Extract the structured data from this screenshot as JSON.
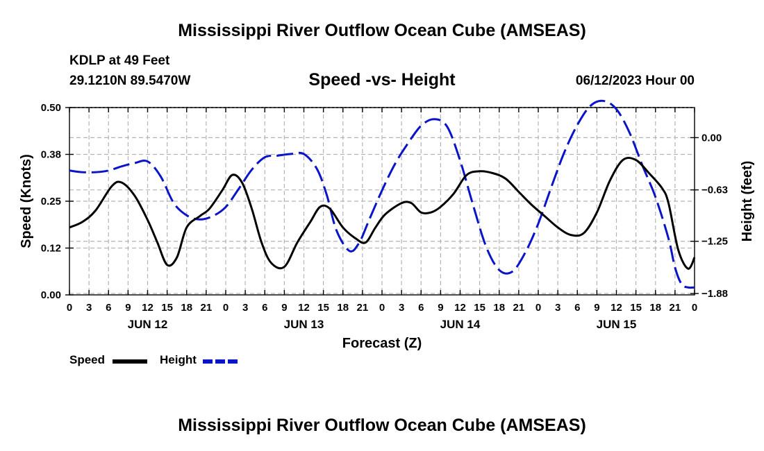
{
  "header": {
    "title": "Mississippi River Outflow Ocean Cube (AMSEAS)",
    "station": "KDLP at 49 Feet",
    "coords": "29.1210N  89.5470W",
    "subtitle": "Speed -vs- Height",
    "datetime": "06/12/2023 Hour 00"
  },
  "footer": {
    "title": "Mississippi River Outflow Ocean Cube (AMSEAS)"
  },
  "legend": {
    "speed_label": "Speed",
    "height_label": "Height"
  },
  "colors": {
    "speed": "#000000",
    "height": "#0a14c8",
    "grid": "#b4b4b4"
  },
  "chart_data": {
    "type": "line",
    "title": "Speed -vs- Height",
    "xlabel": "Forecast (Z)",
    "ylabel": "Speed (Knots)",
    "y2label": "Height (feet)",
    "xlim": [
      0,
      96
    ],
    "ylim": [
      0,
      0.5
    ],
    "y2lim": [
      -1.88,
      0.38
    ],
    "yticks": [
      0,
      0.125,
      0.25,
      0.375,
      0.5
    ],
    "yticklabels": [
      "0.00",
      "0.12",
      "0.25",
      "0.38",
      "0.50"
    ],
    "y2ticks": [
      -1.88,
      -1.25,
      -0.63,
      0.0
    ],
    "y2ticklabels": [
      "−1.88",
      "−1.25",
      "−0.63",
      "0.00"
    ],
    "xticks": [
      0,
      3,
      6,
      9,
      12,
      15,
      18,
      21,
      24,
      27,
      30,
      33,
      36,
      39,
      42,
      45,
      48,
      51,
      54,
      57,
      60,
      63,
      66,
      69,
      72,
      75,
      78,
      81,
      84,
      87,
      90,
      93,
      96
    ],
    "xticklabels": [
      "0",
      "3",
      "6",
      "9",
      "12",
      "15",
      "18",
      "21",
      "0",
      "3",
      "6",
      "9",
      "12",
      "15",
      "18",
      "21",
      "0",
      "3",
      "6",
      "9",
      "12",
      "15",
      "18",
      "21",
      "0",
      "3",
      "6",
      "9",
      "12",
      "15",
      "18",
      "21",
      "0"
    ],
    "day_labels": [
      {
        "x": 12,
        "label": "JUN 12"
      },
      {
        "x": 36,
        "label": "JUN 13"
      },
      {
        "x": 60,
        "label": "JUN 14"
      },
      {
        "x": 84,
        "label": "JUN 15"
      }
    ],
    "series": [
      {
        "name": "Speed",
        "axis": "left",
        "style": "solid",
        "x": [
          0,
          2,
          4,
          6.5,
          8,
          10,
          12,
          13.5,
          15,
          16.5,
          18,
          20,
          21.5,
          23.5,
          25,
          26.5,
          28,
          29.5,
          31,
          33,
          35,
          37,
          38.5,
          40,
          42,
          44,
          45.5,
          47,
          48.5,
          51,
          52.5,
          54,
          55.5,
          57,
          59,
          61,
          63,
          65,
          67,
          69,
          71,
          73,
          75,
          77,
          79,
          81,
          83,
          85,
          87,
          89,
          91,
          92,
          93.5,
          95,
          96
        ],
        "values": [
          0.18,
          0.195,
          0.225,
          0.29,
          0.3,
          0.265,
          0.2,
          0.14,
          0.08,
          0.1,
          0.18,
          0.21,
          0.23,
          0.28,
          0.32,
          0.3,
          0.23,
          0.14,
          0.085,
          0.075,
          0.14,
          0.195,
          0.235,
          0.23,
          0.18,
          0.15,
          0.14,
          0.18,
          0.215,
          0.245,
          0.245,
          0.22,
          0.22,
          0.235,
          0.27,
          0.32,
          0.33,
          0.325,
          0.31,
          0.275,
          0.24,
          0.21,
          0.18,
          0.16,
          0.165,
          0.22,
          0.305,
          0.36,
          0.36,
          0.325,
          0.285,
          0.245,
          0.12,
          0.07,
          0.1
        ]
      },
      {
        "name": "Height",
        "axis": "right",
        "style": "dashed",
        "x": [
          0,
          2,
          4,
          6,
          8,
          10,
          12,
          14,
          16,
          18,
          20,
          22,
          24,
          26,
          28,
          30,
          32,
          34,
          36,
          38,
          39.5,
          41,
          43,
          44.5,
          46,
          48,
          50,
          52,
          54,
          56,
          58,
          60,
          62,
          64,
          66,
          68,
          70,
          72,
          74,
          76,
          78,
          80,
          82,
          84,
          86,
          88,
          90,
          92,
          93,
          94,
          95,
          96
        ],
        "values": [
          -0.38,
          -0.4,
          -0.4,
          -0.38,
          -0.33,
          -0.29,
          -0.27,
          -0.45,
          -0.77,
          -0.92,
          -0.97,
          -0.93,
          -0.82,
          -0.6,
          -0.37,
          -0.22,
          -0.2,
          -0.18,
          -0.18,
          -0.36,
          -0.67,
          -1.1,
          -1.35,
          -1.25,
          -0.98,
          -0.62,
          -0.3,
          -0.05,
          0.16,
          0.24,
          0.15,
          -0.26,
          -0.8,
          -1.3,
          -1.58,
          -1.6,
          -1.37,
          -1.02,
          -0.58,
          -0.16,
          0.17,
          0.4,
          0.46,
          0.36,
          0.08,
          -0.32,
          -0.7,
          -1.2,
          -1.55,
          -1.75,
          -1.79,
          -1.79
        ]
      }
    ]
  }
}
